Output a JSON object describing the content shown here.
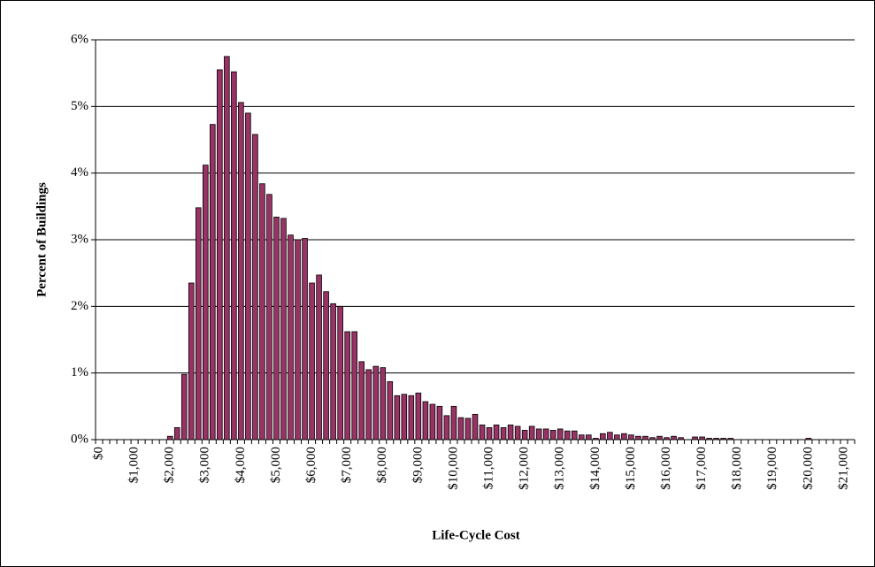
{
  "chart_data": {
    "type": "bar",
    "x_label": "Life-Cycle Cost",
    "y_label": "Percent of Buildings",
    "categories": [
      "$0",
      null,
      null,
      null,
      null,
      "$1,000",
      null,
      null,
      null,
      null,
      "$2,000",
      null,
      null,
      null,
      null,
      "$3,000",
      null,
      null,
      null,
      null,
      "$4,000",
      null,
      null,
      null,
      null,
      "$5,000",
      null,
      null,
      null,
      null,
      "$6,000",
      null,
      null,
      null,
      null,
      "$7,000",
      null,
      null,
      null,
      null,
      "$8,000",
      null,
      null,
      null,
      null,
      "$9,000",
      null,
      null,
      null,
      null,
      "$10,000",
      null,
      null,
      null,
      null,
      "$11,000",
      null,
      null,
      null,
      null,
      "$12,000",
      null,
      null,
      null,
      null,
      "$13,000",
      null,
      null,
      null,
      null,
      "$14,000",
      null,
      null,
      null,
      null,
      "$15,000",
      null,
      null,
      null,
      null,
      "$16,000",
      null,
      null,
      null,
      null,
      "$17,000",
      null,
      null,
      null,
      null,
      "$18,000",
      null,
      null,
      null,
      null,
      "$19,000",
      null,
      null,
      null,
      null,
      "$20,000",
      null,
      null,
      null,
      null,
      "$21,000",
      null
    ],
    "values": [
      0,
      0,
      0,
      0,
      0,
      0,
      0,
      0,
      0,
      0,
      0.05,
      0.18,
      0.98,
      2.35,
      3.48,
      4.12,
      4.73,
      5.55,
      5.75,
      5.52,
      5.06,
      4.9,
      4.58,
      3.84,
      3.68,
      3.34,
      3.32,
      3.07,
      3.0,
      3.02,
      2.35,
      2.47,
      2.22,
      2.04,
      2.0,
      1.62,
      1.62,
      1.17,
      1.05,
      1.1,
      1.08,
      0.87,
      0.66,
      0.68,
      0.66,
      0.7,
      0.57,
      0.53,
      0.5,
      0.36,
      0.5,
      0.33,
      0.32,
      0.38,
      0.22,
      0.18,
      0.22,
      0.18,
      0.22,
      0.2,
      0.14,
      0.2,
      0.16,
      0.16,
      0.14,
      0.16,
      0.13,
      0.13,
      0.07,
      0.07,
      0.02,
      0.09,
      0.11,
      0.07,
      0.09,
      0.07,
      0.05,
      0.05,
      0.03,
      0.05,
      0.03,
      0.05,
      0.03,
      0,
      0.04,
      0.04,
      0.02,
      0.02,
      0.02,
      0.02,
      0,
      0,
      0,
      0,
      0,
      0,
      0,
      0,
      0,
      0,
      0.02,
      0,
      0,
      0,
      0,
      0,
      0
    ],
    "color": "#993366",
    "ylim": [
      0,
      6
    ],
    "yticks": [
      {
        "value": 0,
        "label": "0%"
      },
      {
        "value": 1,
        "label": "1%"
      },
      {
        "value": 2,
        "label": "2%"
      },
      {
        "value": 3,
        "label": "3%"
      },
      {
        "value": 4,
        "label": "4%"
      },
      {
        "value": 5,
        "label": "5%"
      },
      {
        "value": 6,
        "label": "6%"
      }
    ],
    "grid": true
  }
}
